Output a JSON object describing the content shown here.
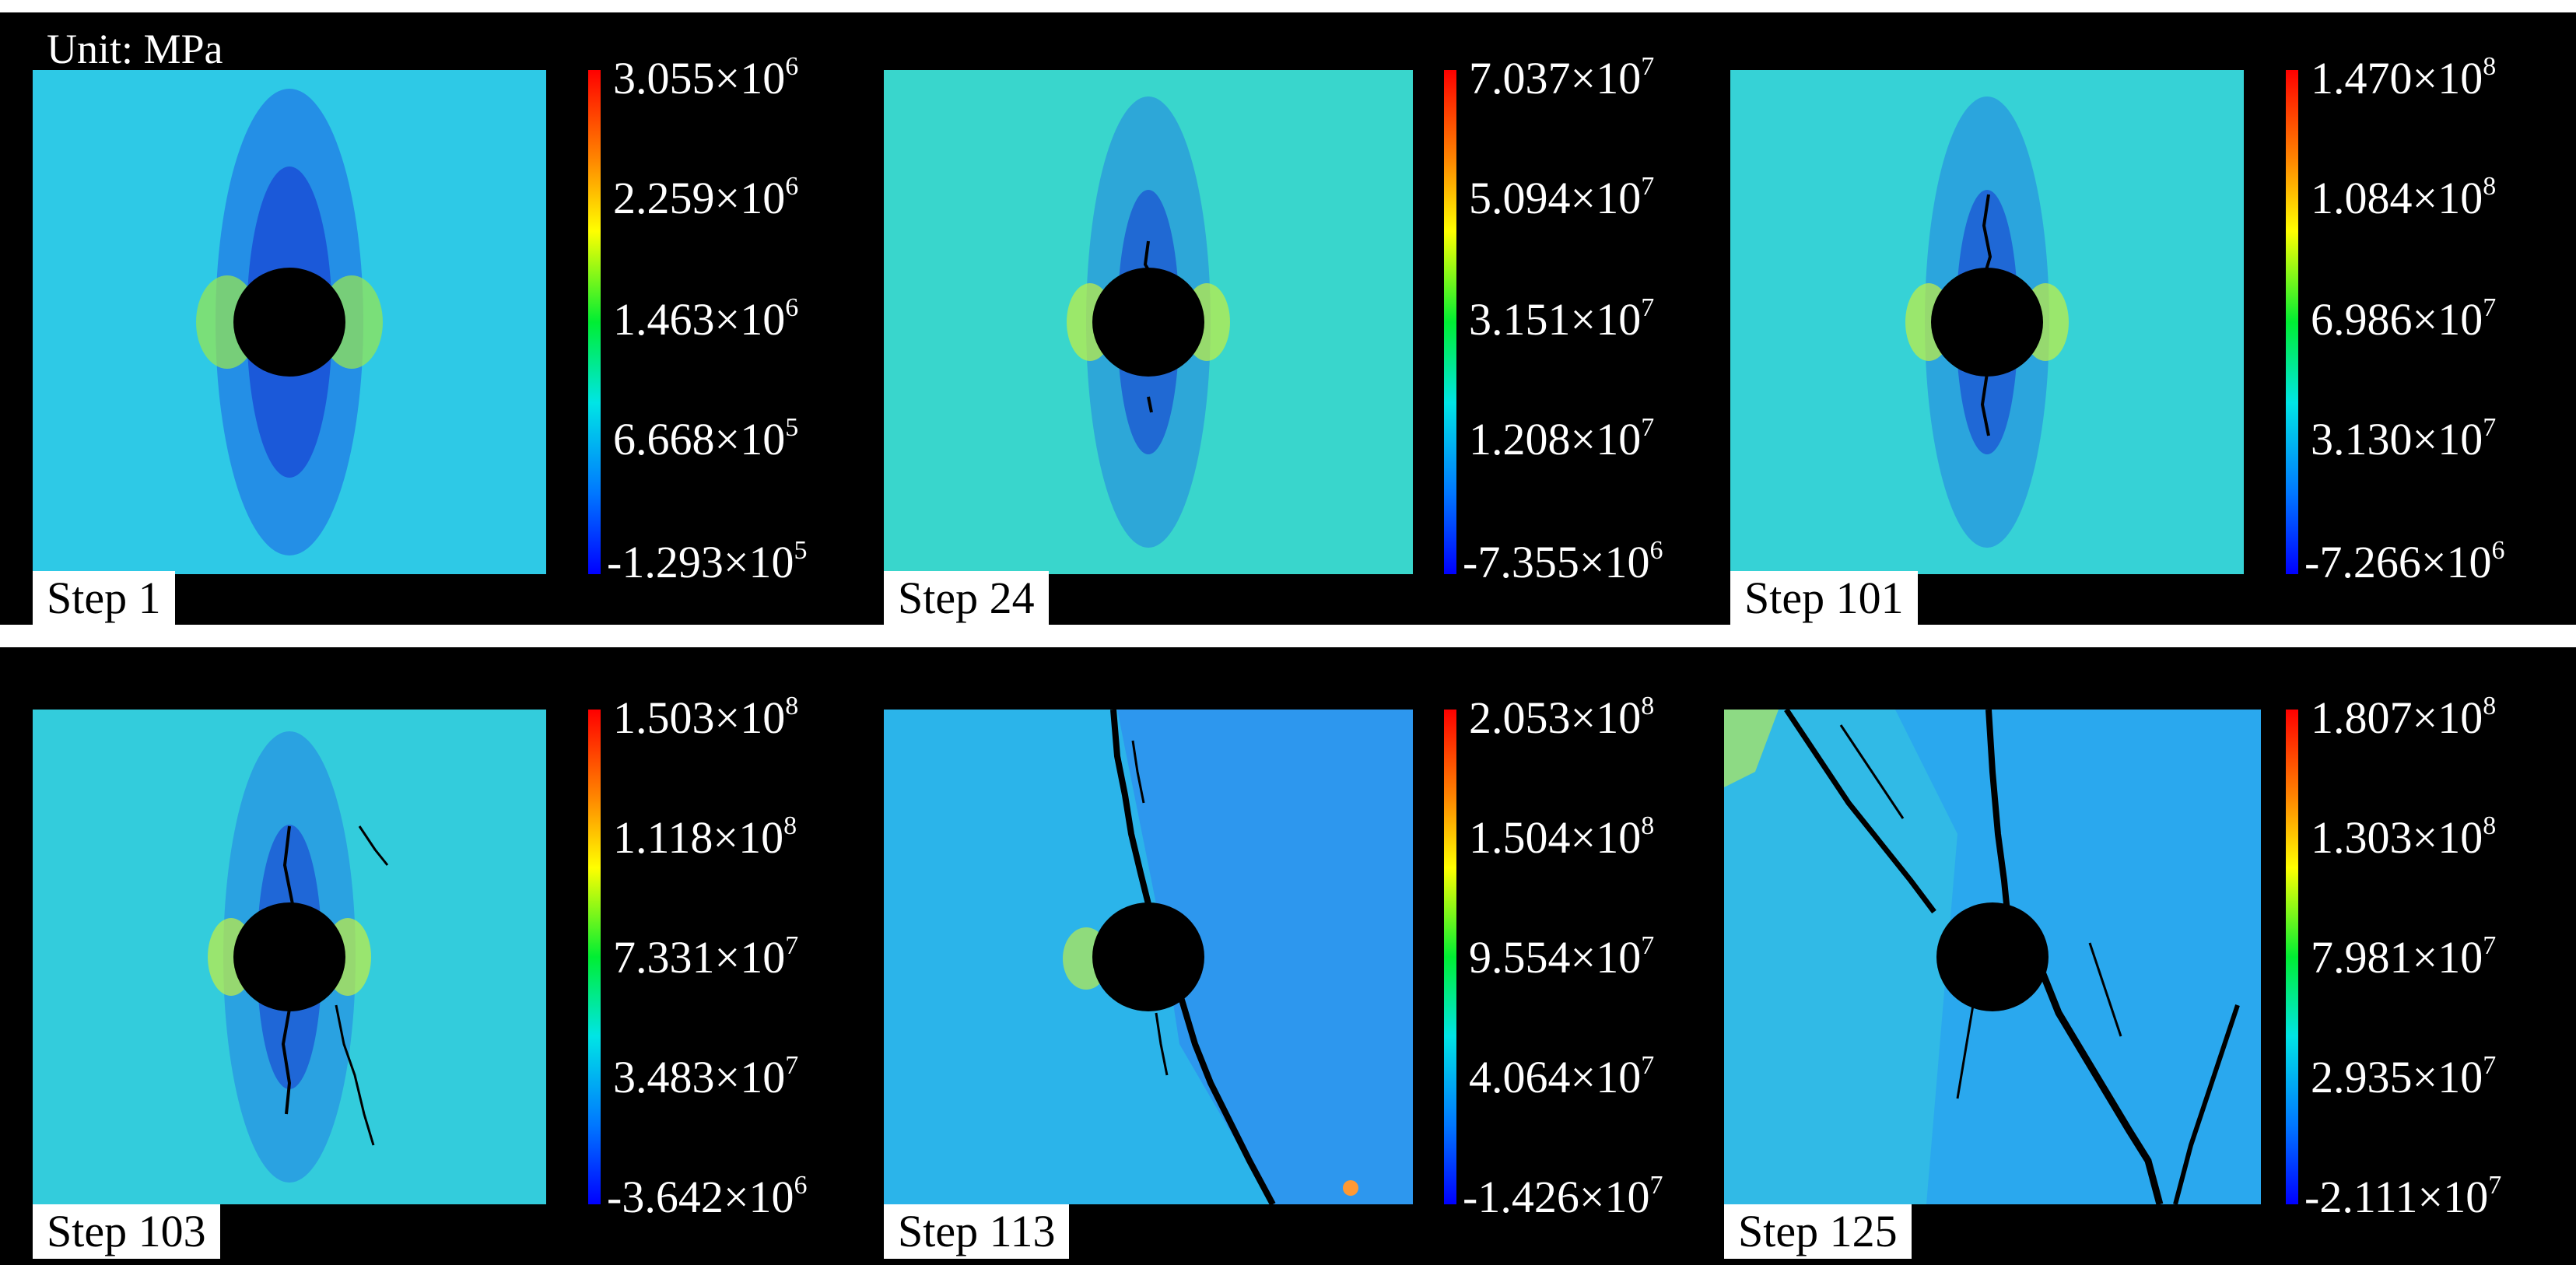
{
  "figure": {
    "unit_label": "Unit: MPa",
    "colormap_colors": [
      "#ff0000",
      "#ff8800",
      "#ffff00",
      "#00ee33",
      "#00e5e5",
      "#0077ff",
      "#0000ff"
    ],
    "background_color": "#000000"
  },
  "panels": [
    {
      "step_label": "Step 1",
      "ticks": [
        {
          "mant": "3.055",
          "exp": "6"
        },
        {
          "mant": "2.259",
          "exp": "6"
        },
        {
          "mant": "1.463",
          "exp": "6"
        },
        {
          "mant": "6.668",
          "exp": "5"
        },
        {
          "mant": "-1.293",
          "exp": "5"
        }
      ],
      "field_color": "#2ec9e6"
    },
    {
      "step_label": "Step 24",
      "ticks": [
        {
          "mant": "7.037",
          "exp": "7"
        },
        {
          "mant": "5.094",
          "exp": "7"
        },
        {
          "mant": "3.151",
          "exp": "7"
        },
        {
          "mant": "1.208",
          "exp": "7"
        },
        {
          "mant": "-7.355",
          "exp": "6"
        }
      ],
      "field_color": "#39d6cc"
    },
    {
      "step_label": "Step 101",
      "ticks": [
        {
          "mant": "1.470",
          "exp": "8"
        },
        {
          "mant": "1.084",
          "exp": "8"
        },
        {
          "mant": "6.986",
          "exp": "7"
        },
        {
          "mant": "3.130",
          "exp": "7"
        },
        {
          "mant": "-7.266",
          "exp": "6"
        }
      ],
      "field_color": "#36d2d6"
    },
    {
      "step_label": "Step 103",
      "ticks": [
        {
          "mant": "1.503",
          "exp": "8"
        },
        {
          "mant": "1.118",
          "exp": "8"
        },
        {
          "mant": "7.331",
          "exp": "7"
        },
        {
          "mant": "3.483",
          "exp": "7"
        },
        {
          "mant": "-3.642",
          "exp": "6"
        }
      ],
      "field_color": "#33ccdc"
    },
    {
      "step_label": "Step 113",
      "ticks": [
        {
          "mant": "2.053",
          "exp": "8"
        },
        {
          "mant": "1.504",
          "exp": "8"
        },
        {
          "mant": "9.554",
          "exp": "7"
        },
        {
          "mant": "4.064",
          "exp": "7"
        },
        {
          "mant": "-1.426",
          "exp": "7"
        }
      ],
      "field_color": "#2bb4ea"
    },
    {
      "step_label": "Step 125",
      "ticks": [
        {
          "mant": "1.807",
          "exp": "8"
        },
        {
          "mant": "1.303",
          "exp": "8"
        },
        {
          "mant": "7.981",
          "exp": "7"
        },
        {
          "mant": "2.935",
          "exp": "7"
        },
        {
          "mant": "-2.111",
          "exp": "7"
        }
      ],
      "field_color": "#2aa8ee"
    }
  ]
}
